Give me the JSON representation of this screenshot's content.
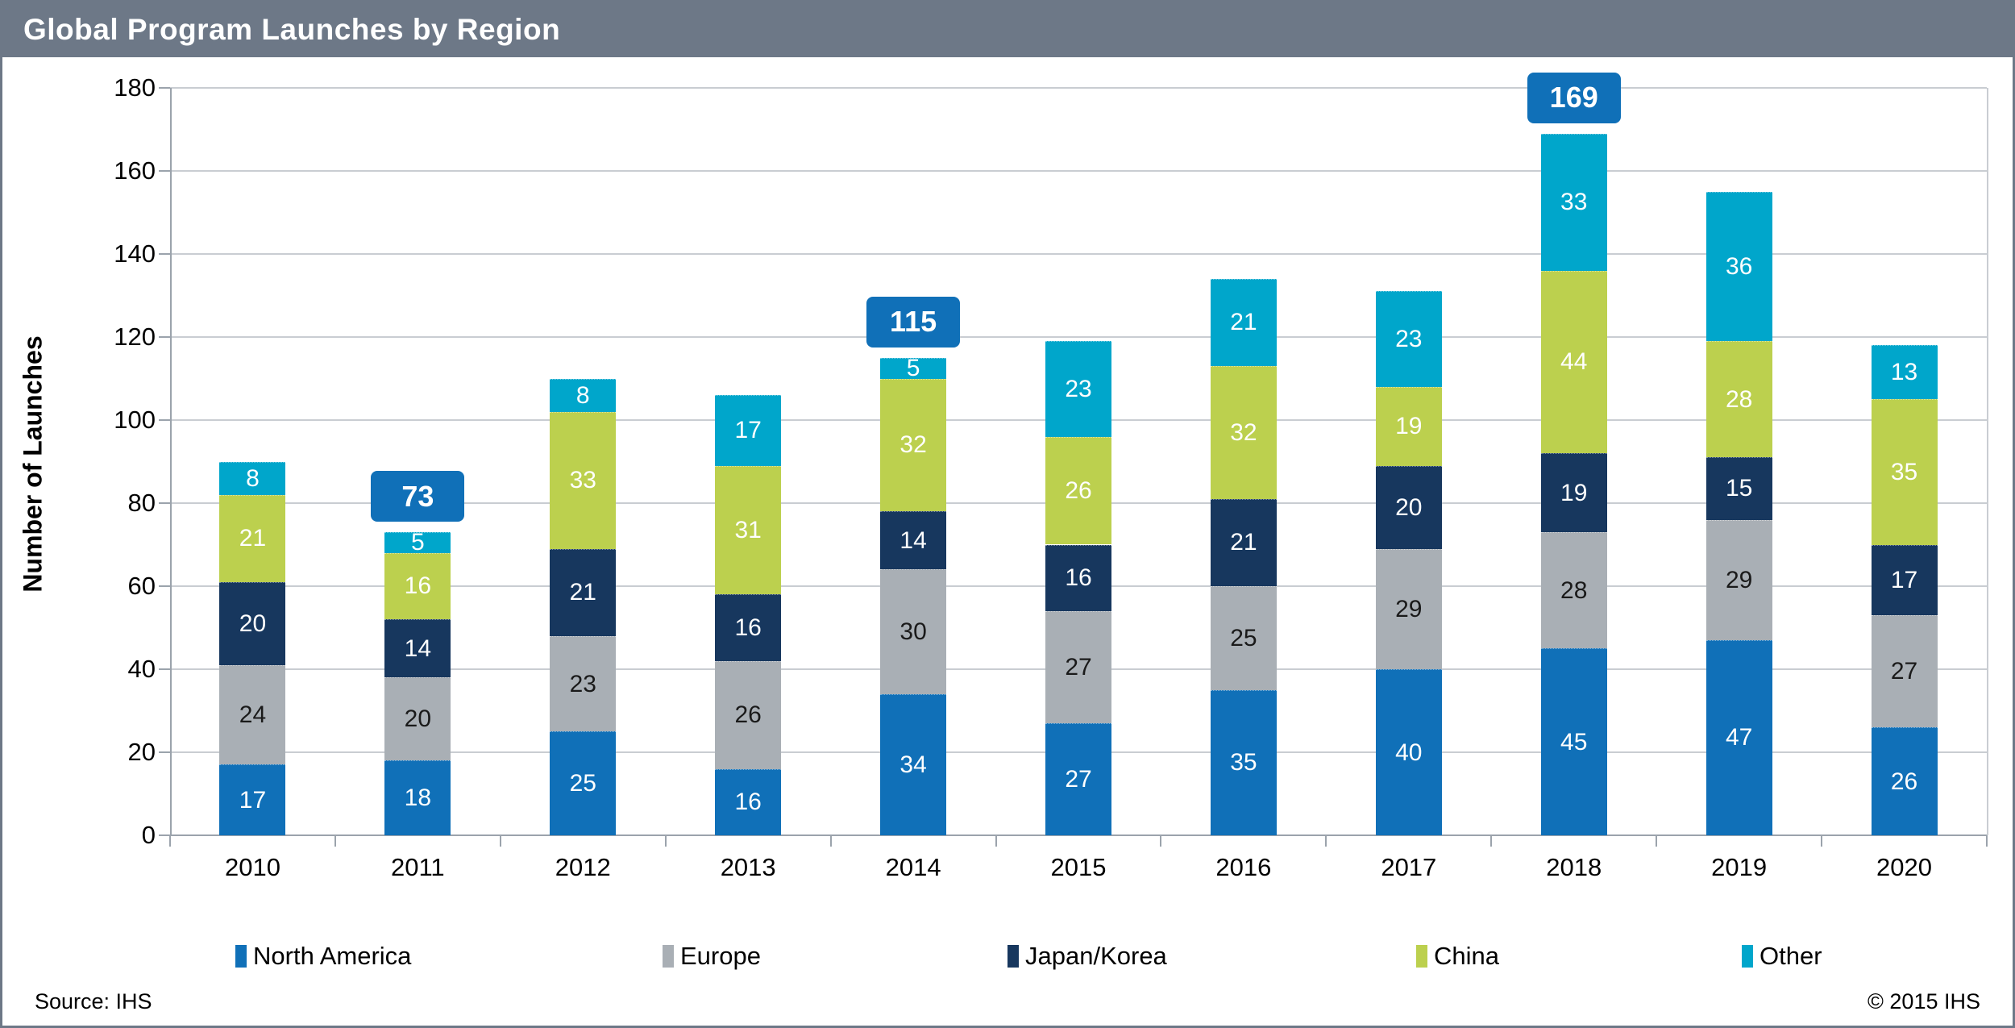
{
  "header": {
    "title": "Global Program Launches by Region"
  },
  "footer": {
    "source": "Source: IHS",
    "copyright": "© 2015 IHS"
  },
  "colors": {
    "header_bar": "#6d7887",
    "callout": "#1070b8",
    "gridline": "#c9cdd2",
    "axis": "#9ba3ac"
  },
  "chart_data": {
    "type": "bar",
    "stacked": true,
    "title": "Global Program Launches by Region",
    "xlabel": "",
    "ylabel": "Number of Launches",
    "ylim": [
      0,
      180
    ],
    "yticks": [
      0,
      20,
      40,
      60,
      80,
      100,
      120,
      140,
      160,
      180
    ],
    "grid": true,
    "legend_position": "bottom",
    "categories": [
      "2010",
      "2011",
      "2012",
      "2013",
      "2014",
      "2015",
      "2016",
      "2017",
      "2018",
      "2019",
      "2020"
    ],
    "series": [
      {
        "name": "North America",
        "color": "#1070b8",
        "label_color": "#ffffff",
        "values": [
          17,
          18,
          25,
          16,
          34,
          27,
          35,
          40,
          45,
          47,
          26
        ]
      },
      {
        "name": "Europe",
        "color": "#a9afb5",
        "label_color": "#1a1a1a",
        "values": [
          24,
          20,
          23,
          26,
          30,
          27,
          25,
          29,
          28,
          29,
          27
        ]
      },
      {
        "name": "Japan/Korea",
        "color": "#17375e",
        "label_color": "#ffffff",
        "values": [
          20,
          14,
          21,
          16,
          14,
          16,
          21,
          20,
          19,
          15,
          17
        ]
      },
      {
        "name": "China",
        "color": "#bcd04e",
        "label_color": "#ffffff",
        "values": [
          21,
          16,
          33,
          31,
          32,
          26,
          32,
          19,
          44,
          28,
          35
        ]
      },
      {
        "name": "Other",
        "color": "#00a6cb",
        "label_color": "#ffffff",
        "values": [
          8,
          5,
          8,
          17,
          5,
          23,
          21,
          23,
          33,
          36,
          13
        ]
      }
    ],
    "totals": [
      90,
      73,
      110,
      106,
      115,
      119,
      134,
      131,
      169,
      155,
      118
    ],
    "total_callouts": [
      {
        "category": "2011",
        "value": 73
      },
      {
        "category": "2014",
        "value": 115
      },
      {
        "category": "2018",
        "value": 169
      }
    ]
  }
}
